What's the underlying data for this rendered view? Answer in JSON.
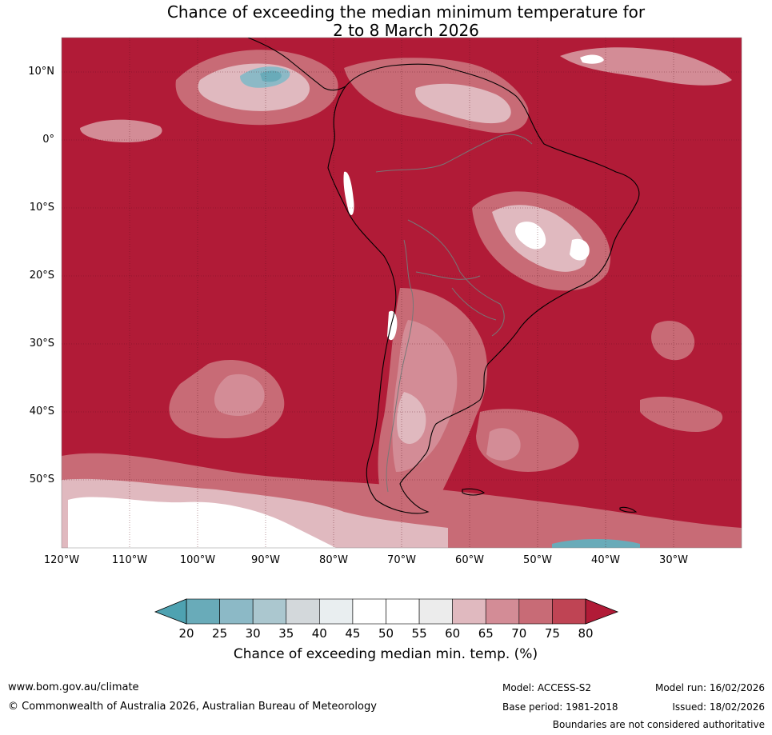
{
  "title_line1": "Chance of exceeding the median minimum temperature for",
  "title_line2": "2 to 8 March 2026",
  "lat_labels": [
    "10°N",
    "0°",
    "10°S",
    "20°S",
    "30°S",
    "40°S",
    "50°S"
  ],
  "lon_labels": [
    "120°W",
    "110°W",
    "100°W",
    "90°W",
    "80°W",
    "70°W",
    "60°W",
    "50°W",
    "40°W",
    "30°W"
  ],
  "colorbar": {
    "ticks": [
      "20",
      "25",
      "30",
      "35",
      "40",
      "45",
      "50",
      "55",
      "60",
      "65",
      "70",
      "75",
      "80"
    ],
    "colors": [
      "#69abb9",
      "#8cb9c6",
      "#abc7cf",
      "#d3d8db",
      "#e9eef0",
      "#ffffff",
      "#ffffff",
      "#ececec",
      "#e0b9bf",
      "#d38c96",
      "#c86b76",
      "#bf4454"
    ],
    "under_color": "#4ea2b1",
    "over_color": "#b11b37",
    "title": "Chance of exceeding median min. temp. (%)"
  },
  "map_colors": {
    "base": "#b11b37",
    "level_70": "#c86b76",
    "level_65": "#d38c96",
    "level_60": "#e0b9bf",
    "level_50": "#ffffff",
    "level_25": "#69abb9"
  },
  "footer": {
    "website": "www.bom.gov.au/climate",
    "copyright": "© Commonwealth of Australia 2026, Australian Bureau of Meteorology",
    "model": "Model: ACCESS-S2",
    "base_period": "Base period: 1981-2018",
    "model_run": "Model run: 16/02/2026",
    "issued": "Issued: 18/02/2026",
    "disclaimer": "Boundaries are not considered authoritative"
  }
}
